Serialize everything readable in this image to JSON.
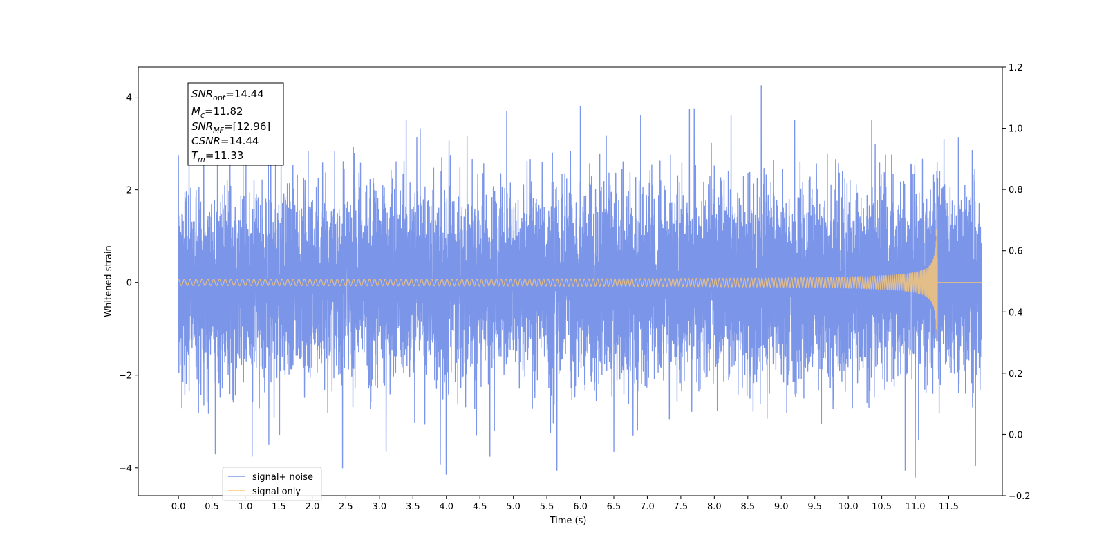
{
  "chart_data": {
    "type": "line",
    "title": "",
    "xlabel": "Time (s)",
    "ylabel": "Whitened strain",
    "xlim": [
      -0.6,
      12.3
    ],
    "ylim": [
      -4.6,
      4.65
    ],
    "y2lim": [
      -0.2,
      1.2
    ],
    "xticks": [
      0.0,
      0.5,
      1.0,
      1.5,
      2.0,
      2.5,
      3.0,
      3.5,
      4.0,
      4.5,
      5.0,
      5.5,
      6.0,
      6.5,
      7.0,
      7.5,
      8.0,
      8.5,
      9.0,
      9.5,
      10.0,
      10.5,
      11.0,
      11.5
    ],
    "xtick_labels": [
      "0.0",
      "0.5",
      "1.0",
      "1.5",
      "2.0",
      "2.5",
      "3.0",
      "3.5",
      "4.0",
      "4.5",
      "5.0",
      "5.5",
      "6.0",
      "6.5",
      "7.0",
      "7.5",
      "8.0",
      "8.5",
      "9.0",
      "9.5",
      "10.0",
      "10.5",
      "11.0",
      "11.5"
    ],
    "yticks": [
      -4,
      -2,
      0,
      2,
      4
    ],
    "ytick_labels": [
      "−4",
      "−2",
      "0",
      "2",
      "4"
    ],
    "y2ticks": [
      -0.2,
      0.0,
      0.2,
      0.4,
      0.6,
      0.8,
      1.0,
      1.2
    ],
    "y2tick_labels": [
      "−0.2",
      "0.0",
      "0.2",
      "0.4",
      "0.6",
      "0.8",
      "1.0",
      "1.2"
    ],
    "grid": false,
    "legend_position": "bottom-left",
    "series": [
      {
        "name": "signal+ noise",
        "color": "#7b95e8",
        "kind": "noise",
        "x_start": 0.0,
        "x_end": 11.99,
        "std": 1.0,
        "range": [
          -4.2,
          4.25
        ],
        "spikes": [
          {
            "x": 0.0,
            "y": 2.75
          },
          {
            "x": 0.05,
            "y": -2.7
          },
          {
            "x": 0.3,
            "y": -2.8
          },
          {
            "x": 0.55,
            "y": -3.7
          },
          {
            "x": 1.1,
            "y": -3.75
          },
          {
            "x": 1.35,
            "y": -3.5
          },
          {
            "x": 1.45,
            "y": 3.15
          },
          {
            "x": 2.45,
            "y": -4.0
          },
          {
            "x": 3.1,
            "y": -3.65
          },
          {
            "x": 3.4,
            "y": 3.5
          },
          {
            "x": 4.45,
            "y": -3.3
          },
          {
            "x": 4.65,
            "y": -3.75
          },
          {
            "x": 4.9,
            "y": 3.7
          },
          {
            "x": 5.65,
            "y": -4.05
          },
          {
            "x": 6.0,
            "y": 3.8
          },
          {
            "x": 6.5,
            "y": -3.65
          },
          {
            "x": 6.9,
            "y": 3.6
          },
          {
            "x": 7.7,
            "y": 3.75
          },
          {
            "x": 8.25,
            "y": 3.6
          },
          {
            "x": 8.7,
            "y": 4.25
          },
          {
            "x": 9.2,
            "y": 3.5
          },
          {
            "x": 9.6,
            "y": -3.05
          },
          {
            "x": 10.35,
            "y": 3.5
          },
          {
            "x": 10.85,
            "y": -4.05
          },
          {
            "x": 11.0,
            "y": -4.2
          },
          {
            "x": 11.85,
            "y": 2.85
          },
          {
            "x": 11.9,
            "y": -3.95
          }
        ]
      },
      {
        "name": "signal only",
        "color": "#ffc870",
        "kind": "chirp",
        "axis": "left",
        "x_start": 0.0,
        "x_end": 11.33,
        "x_after_end": 11.99,
        "amplitude_start": 0.05,
        "amplitude_peak": 2.45,
        "merger_time": 11.33
      }
    ]
  },
  "legend": {
    "entries": [
      {
        "label": "signal+ noise",
        "color": "#7b95e8"
      },
      {
        "label": "signal only",
        "color": "#ffc870"
      }
    ]
  },
  "info_box": {
    "lines": [
      {
        "symbol": "SNR",
        "sub": "opt",
        "value": "=14.44"
      },
      {
        "symbol": "M",
        "sub": "c",
        "value": "=11.82"
      },
      {
        "symbol": "SNR",
        "sub": "MF",
        "value": "=[12.96]"
      },
      {
        "symbol": "CSNR",
        "sub": "",
        "value": "=14.44"
      },
      {
        "symbol": "T",
        "sub": "m",
        "value": "=11.33"
      }
    ]
  }
}
